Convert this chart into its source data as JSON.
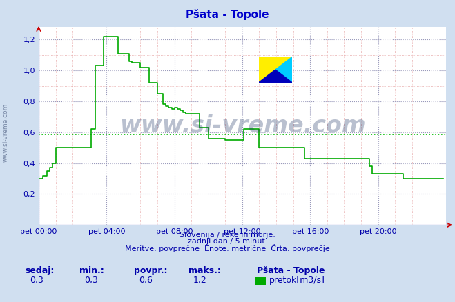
{
  "title": "Pšata - Topole",
  "title_color": "#0000cc",
  "bg_color": "#d0dff0",
  "plot_bg_color": "#ffffff",
  "grid_major_color": "#9999bb",
  "grid_minor_color": "#e8aaaa",
  "line_color": "#00aa00",
  "avg_line_color": "#00bb00",
  "avg_value": 0.585,
  "tick_color": "#cc0000",
  "text_color": "#0000aa",
  "watermark": "www.si-vreme.com",
  "watermark_color": "#1a3060",
  "subtitle1": "Slovenija / reke in morje.",
  "subtitle2": "zadnji dan / 5 minut.",
  "subtitle3": "Meritve: povprečne  Enote: metrične  Črta: povprečje",
  "ylabel_text": "www.si-vreme.com",
  "footer_labels": [
    "sedaj:",
    "min.:",
    "povpr.:",
    "maks.:"
  ],
  "footer_values": [
    "0,3",
    "0,3",
    "0,6",
    "1,2"
  ],
  "footer_station": "Pšata - Topole",
  "footer_legend": "pretok[m3/s]",
  "legend_color": "#00aa00",
  "ylim": [
    0.0,
    1.28
  ],
  "yticks": [
    0.2,
    0.4,
    0.6,
    0.8,
    1.0,
    1.2
  ],
  "ytick_labels": [
    "0,2",
    "0,4",
    "0,6",
    "0,8",
    "1,0",
    "1,2"
  ],
  "xtick_labels": [
    "pet 00:00",
    "pet 04:00",
    "pet 08:00",
    "pet 12:00",
    "pet 16:00",
    "pet 20:00"
  ],
  "xtick_positions": [
    0,
    4,
    8,
    12,
    16,
    20
  ],
  "xlim": [
    0,
    24
  ],
  "time_hours": [
    0.0,
    0.083,
    0.25,
    0.5,
    0.667,
    0.833,
    1.0,
    1.5,
    2.0,
    2.5,
    3.0,
    3.083,
    3.167,
    3.333,
    3.5,
    3.667,
    3.833,
    4.0,
    4.083,
    4.25,
    4.5,
    4.667,
    5.0,
    5.333,
    5.5,
    6.0,
    6.5,
    7.0,
    7.333,
    7.5,
    7.667,
    7.833,
    8.0,
    8.167,
    8.333,
    8.5,
    8.667,
    9.0,
    9.5,
    10.0,
    10.5,
    11.0,
    11.5,
    12.0,
    12.083,
    12.25,
    12.5,
    13.0,
    13.5,
    14.0,
    14.5,
    15.0,
    15.5,
    15.667,
    16.0,
    16.5,
    17.0,
    17.5,
    18.0,
    18.5,
    19.0,
    19.5,
    19.667,
    20.0,
    20.5,
    21.0,
    21.5,
    22.0,
    22.5,
    23.0,
    23.5,
    23.833
  ],
  "flow_values": [
    0.3,
    0.3,
    0.32,
    0.35,
    0.37,
    0.4,
    0.5,
    0.5,
    0.5,
    0.5,
    0.5,
    0.62,
    0.62,
    1.03,
    1.03,
    1.03,
    1.22,
    1.22,
    1.22,
    1.22,
    1.22,
    1.11,
    1.11,
    1.06,
    1.05,
    1.02,
    0.92,
    0.85,
    0.78,
    0.77,
    0.76,
    0.75,
    0.76,
    0.75,
    0.74,
    0.73,
    0.72,
    0.72,
    0.63,
    0.56,
    0.56,
    0.55,
    0.55,
    0.55,
    0.62,
    0.62,
    0.62,
    0.5,
    0.5,
    0.5,
    0.5,
    0.5,
    0.5,
    0.43,
    0.43,
    0.43,
    0.43,
    0.43,
    0.43,
    0.43,
    0.43,
    0.38,
    0.33,
    0.33,
    0.33,
    0.33,
    0.3,
    0.3,
    0.3,
    0.3,
    0.3,
    0.3
  ]
}
